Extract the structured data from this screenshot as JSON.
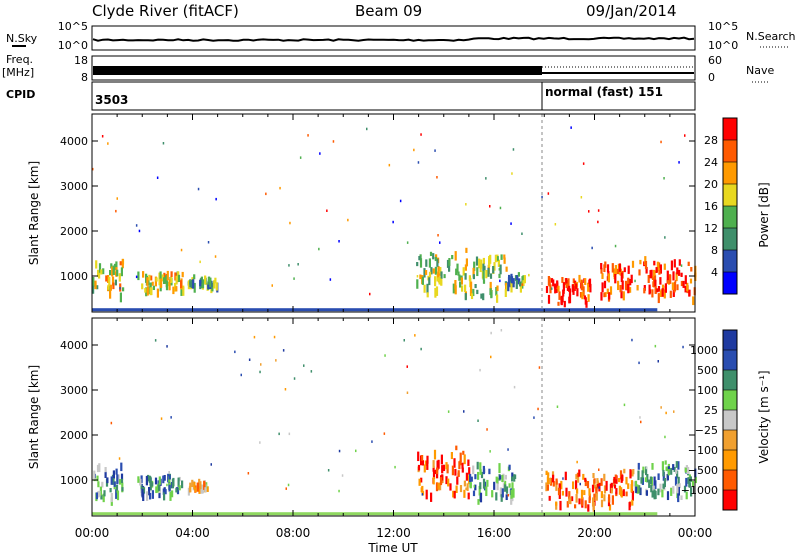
{
  "header": {
    "station": "Clyde River (fitACF)",
    "beam": "Beam 09",
    "date": "09/Jan/2014"
  },
  "strips": {
    "nsky_label": "N.Sky",
    "nsearch_label": "N.Search",
    "noise_tick_top": "10^5",
    "noise_tick_bottom": "10^0",
    "freq_label": "Freq.",
    "freq_unit": "[MHz]",
    "freq_tick_top": "18",
    "freq_tick_bottom": "8",
    "nave_label": "Nave",
    "nave_tick_top": "60",
    "nave_tick_bottom": "0",
    "cpid_label": "CPID",
    "cpid_1": "3503",
    "cpid_2": "normal (fast) 151"
  },
  "colors": {
    "power_scale": [
      "#0000ff",
      "#2a4db0",
      "#3f8f6b",
      "#4fb04f",
      "#e8d820",
      "#ff9a00",
      "#ff5a00",
      "#ff0000"
    ],
    "velocity_scale": [
      "#ff0000",
      "#ff5a00",
      "#ff9a00",
      "#f0a030",
      "#c8c8c8",
      "#6fd24a",
      "#3f8f6b",
      "#2a4db0",
      "#1f3aa0"
    ]
  },
  "chart_data": [
    {
      "type": "heatmap",
      "name": "power-panel",
      "ylabel": "Slant Range [km]",
      "xlim": [
        "00:00",
        "24:00"
      ],
      "ylim": [
        200,
        4600
      ],
      "y_ticks": [
        "1000",
        "2000",
        "3000",
        "4000"
      ],
      "colorbar_label": "Power [dB]",
      "colorbar_ticks": [
        "4",
        "8",
        "12",
        "16",
        "20",
        "24",
        "28"
      ],
      "regions": [
        {
          "t0": 0.0,
          "t1": 1.2,
          "r0": 600,
          "r1": 1450,
          "level": 0.55
        },
        {
          "t0": 1.8,
          "t1": 3.6,
          "r0": 650,
          "r1": 1200,
          "level": 0.6
        },
        {
          "t0": 3.8,
          "t1": 5.0,
          "r0": 800,
          "r1": 1050,
          "level": 0.4
        },
        {
          "t0": 12.9,
          "t1": 16.5,
          "r0": 500,
          "r1": 1700,
          "level": 0.5
        },
        {
          "t0": 16.5,
          "t1": 17.2,
          "r0": 800,
          "r1": 1100,
          "level": 0.35
        },
        {
          "t0": 18.0,
          "t1": 19.8,
          "r0": 400,
          "r1": 1050,
          "level": 0.9
        },
        {
          "t0": 20.2,
          "t1": 24.0,
          "r0": 500,
          "r1": 1500,
          "level": 0.85
        }
      ],
      "ground_scatter": {
        "t0": 0.0,
        "t1": 22.5,
        "range": 240
      }
    },
    {
      "type": "heatmap",
      "name": "velocity-panel",
      "ylabel": "Slant Range [km]",
      "xlabel": "Time UT",
      "xlim": [
        "00:00",
        "24:00"
      ],
      "ylim": [
        200,
        4600
      ],
      "y_ticks": [
        "1000",
        "2000",
        "3000",
        "4000"
      ],
      "x_ticks": [
        "00:00",
        "04:00",
        "08:00",
        "12:00",
        "16:00",
        "20:00",
        "00:00"
      ],
      "colorbar_label": "Velocity [m s⁻¹]",
      "colorbar_ticks": [
        "1000",
        "500",
        "100",
        "25",
        "−25",
        "−100",
        "−500",
        "−1000"
      ],
      "regions": [
        {
          "t0": 0.0,
          "t1": 1.2,
          "r0": 600,
          "r1": 1450,
          "level": 0.7
        },
        {
          "t0": 1.8,
          "t1": 3.6,
          "r0": 650,
          "r1": 1200,
          "level": 0.72
        },
        {
          "t0": 3.8,
          "t1": 4.6,
          "r0": 800,
          "r1": 1050,
          "level": 0.35
        },
        {
          "t0": 12.9,
          "t1": 15.0,
          "r0": 600,
          "r1": 1800,
          "level": 0.15
        },
        {
          "t0": 15.0,
          "t1": 16.8,
          "r0": 500,
          "r1": 1500,
          "level": 0.7
        },
        {
          "t0": 18.0,
          "t1": 21.5,
          "r0": 400,
          "r1": 1300,
          "level": 0.2
        },
        {
          "t0": 21.5,
          "t1": 24.0,
          "r0": 600,
          "r1": 1500,
          "level": 0.72
        }
      ],
      "ground_scatter": {
        "t0": 0.0,
        "t1": 22.5,
        "range": 240
      }
    }
  ]
}
